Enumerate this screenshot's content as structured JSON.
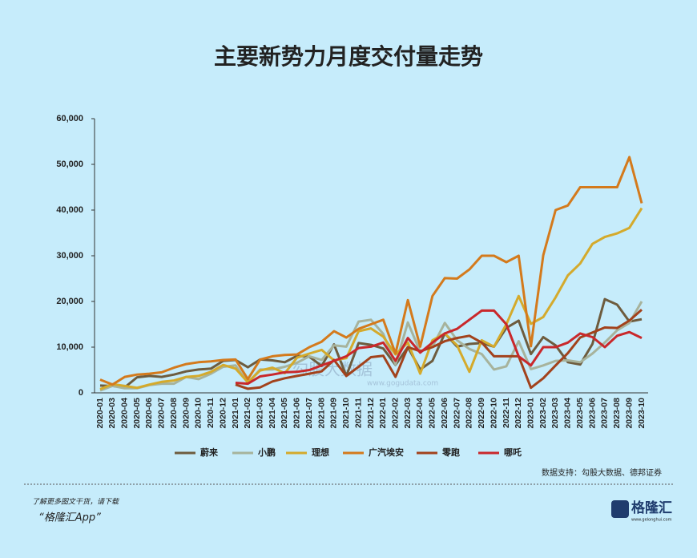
{
  "chart_data": {
    "type": "line",
    "title": "主要新势力月度交付量走势",
    "categories": [
      "2020-01",
      "2020-03",
      "2020-04",
      "2020-05",
      "2020-06",
      "2020-07",
      "2020-08",
      "2020-09",
      "2020-10",
      "2020-11",
      "2020-12",
      "2021-01",
      "2021-02",
      "2021-03",
      "2021-04",
      "2021-05",
      "2021-06",
      "2021-07",
      "2021-08",
      "2021-09",
      "2021-10",
      "2021-11",
      "2021-12",
      "2022-01",
      "2022-02",
      "2022-03",
      "2022-04",
      "2022-05",
      "2022-06",
      "2022-07",
      "2022-08",
      "2022-09",
      "2022-10",
      "2022-11",
      "2022-12",
      "2023-01",
      "2023-02",
      "2023-03",
      "2023-04",
      "2023-05",
      "2023-06",
      "2023-07",
      "2023-08",
      "2023-09",
      "2023-10"
    ],
    "series": [
      {
        "name": "蔚来",
        "color": "#6e5c3e",
        "values": [
          1600,
          1500,
          1200,
          3400,
          3700,
          3500,
          4000,
          4700,
          5100,
          5300,
          7000,
          7200,
          5600,
          7300,
          7100,
          6700,
          8100,
          7900,
          5900,
          10600,
          3700,
          10900,
          10500,
          9700,
          6100,
          10000,
          5100,
          7000,
          13000,
          10100,
          10700,
          10900,
          10100,
          14200,
          15800,
          8500,
          12200,
          10400,
          6700,
          6200,
          10700,
          20500,
          19300,
          15600,
          16100
        ]
      },
      {
        "name": "小鹏",
        "color": "#a7b39c",
        "values": [
          500,
          1500,
          1000,
          1000,
          1700,
          2000,
          2000,
          3500,
          3000,
          4200,
          5700,
          6000,
          2200,
          5100,
          5100,
          5700,
          6600,
          8000,
          7200,
          10400,
          10100,
          15600,
          16000,
          12900,
          6200,
          15400,
          9000,
          10100,
          15300,
          11500,
          9600,
          8500,
          5100,
          5800,
          11300,
          5200,
          6000,
          7000,
          7100,
          6700,
          8600,
          11000,
          13700,
          15300,
          20000
        ]
      },
      {
        "name": "理想",
        "color": "#d4aa2c",
        "values": [
          800,
          1900,
          1500,
          1100,
          1800,
          2400,
          2700,
          3500,
          3700,
          4600,
          6100,
          5300,
          2300,
          4900,
          5500,
          4300,
          7700,
          8600,
          9400,
          7100,
          7600,
          13500,
          14100,
          12300,
          8400,
          11000,
          4200,
          11500,
          13000,
          10400,
          4600,
          11500,
          10100,
          15000,
          21200,
          15100,
          16600,
          20900,
          25700,
          28300,
          32600,
          34100,
          34900,
          36100,
          40400
        ]
      },
      {
        "name": "广汽埃安",
        "color": "#d47a1c",
        "values": [
          2900,
          1800,
          3500,
          4000,
          4200,
          4500,
          5500,
          6300,
          6700,
          6900,
          7200,
          7300,
          3000,
          7300,
          8000,
          8300,
          8400,
          10000,
          11200,
          13500,
          12100,
          14000,
          15000,
          16000,
          8600,
          20300,
          10100,
          21200,
          25100,
          25000,
          27000,
          30000,
          30000,
          28600,
          30000,
          10200,
          30100,
          40000,
          41000,
          45000,
          45000,
          45000,
          45000,
          51600,
          41500
        ]
      },
      {
        "name": "零跑",
        "color": "#a2421c",
        "values": [
          null,
          null,
          null,
          null,
          null,
          null,
          null,
          null,
          null,
          null,
          null,
          1800,
          900,
          1200,
          2500,
          3200,
          3700,
          4200,
          4700,
          7200,
          3700,
          5700,
          7800,
          8100,
          3500,
          10000,
          9100,
          10000,
          11300,
          12000,
          12500,
          11000,
          8000,
          8000,
          8000,
          1100,
          3200,
          6000,
          8700,
          12100,
          13200,
          14300,
          14200,
          15800,
          18200
        ]
      },
      {
        "name": "哪吒",
        "color": "#c9282b",
        "values": [
          null,
          null,
          null,
          null,
          null,
          null,
          null,
          null,
          null,
          null,
          null,
          2200,
          2000,
          3600,
          4000,
          4500,
          4600,
          5000,
          6000,
          7000,
          8000,
          9800,
          10100,
          11000,
          7000,
          12000,
          8800,
          11000,
          13000,
          14000,
          16000,
          18000,
          18000,
          15000,
          8000,
          6000,
          10000,
          10000,
          11000,
          13000,
          12200,
          10000,
          12500,
          13300,
          12000
        ]
      }
    ],
    "ylim": [
      0,
      60000
    ],
    "yticks": [
      0,
      {
        "value": 10000,
        "label": "10,000"
      },
      {
        "value": 20000,
        "label": "20,000"
      },
      {
        "value": 30000,
        "label": "30,000"
      },
      {
        "value": 40000,
        "label": "40,000"
      },
      {
        "value": 50000,
        "label": "50,000"
      },
      {
        "value": 60000,
        "label": "60,000"
      }
    ],
    "source": "数据支持：勾股大数据、德邦证券"
  },
  "watermark": {
    "name": "勾股大数据",
    "url": "www.gogudata.com"
  },
  "footer": {
    "line1": "了解更多图文干货，请下载",
    "line2": "“格隆汇App”",
    "logo": "格隆汇",
    "logo_url": "www.gelonghui.com"
  }
}
